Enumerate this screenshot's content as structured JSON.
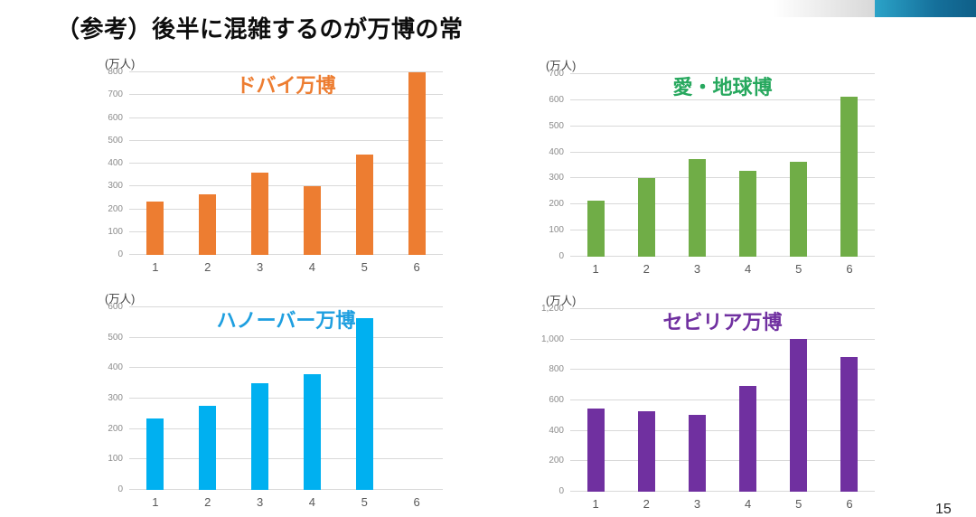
{
  "slide": {
    "title": "（参考）後半に混雑するのが万博の常",
    "page_number": "15",
    "accent": {
      "gray_strip_from": "#FFFFFF",
      "gray_strip_to": "#D8D8D8",
      "teal_bar_from": "#2BA3C8",
      "teal_bar_to": "#0F5F88"
    }
  },
  "chart_data": [
    {
      "type": "bar",
      "title": "ドバイ万博",
      "title_color": "#ED7D31",
      "color": "#ED7D31",
      "unit_label": "(万人)",
      "xlabel": "",
      "ylabel": "(万人)",
      "categories": [
        "1",
        "2",
        "3",
        "4",
        "5",
        "6"
      ],
      "values": [
        235,
        265,
        360,
        300,
        440,
        800
      ],
      "ylim": [
        0,
        800
      ],
      "ytick_step": 100,
      "yticks": [
        "800",
        "700",
        "600",
        "500",
        "400",
        "300",
        "200",
        "100",
        "0"
      ],
      "grid": true,
      "legend": false
    },
    {
      "type": "bar",
      "title": "愛・地球博",
      "title_color": "#27A85E",
      "color": "#70AD47",
      "unit_label": "(万人)",
      "xlabel": "",
      "ylabel": "(万人)",
      "categories": [
        "1",
        "2",
        "3",
        "4",
        "5",
        "6"
      ],
      "values": [
        215,
        300,
        375,
        330,
        365,
        615
      ],
      "ylim": [
        0,
        700
      ],
      "ytick_step": 100,
      "yticks": [
        "700",
        "600",
        "500",
        "400",
        "300",
        "200",
        "100",
        "0"
      ],
      "grid": true,
      "legend": false
    },
    {
      "type": "bar",
      "title": "ハノーバー万博",
      "title_color": "#1E9FE0",
      "color": "#00B0F0",
      "unit_label": "(万人)",
      "xlabel": "",
      "ylabel": "(万人)",
      "categories": [
        "1",
        "2",
        "3",
        "4",
        "5",
        "6"
      ],
      "values": [
        235,
        275,
        350,
        380,
        565,
        0
      ],
      "ylim": [
        0,
        600
      ],
      "ytick_step": 100,
      "yticks": [
        "600",
        "500",
        "400",
        "300",
        "200",
        "100",
        "0"
      ],
      "grid": true,
      "legend": false
    },
    {
      "type": "bar",
      "title": "セビリア万博",
      "title_color": "#7030A0",
      "color": "#7030A0",
      "unit_label": "(万人)",
      "xlabel": "",
      "ylabel": "(万人)",
      "categories": [
        "1",
        "2",
        "3",
        "4",
        "5",
        "6"
      ],
      "values": [
        545,
        530,
        505,
        695,
        1005,
        885
      ],
      "ylim": [
        0,
        1200
      ],
      "ytick_step": 200,
      "yticks": [
        "1,200",
        "1,000",
        "800",
        "600",
        "400",
        "200",
        "0"
      ],
      "grid": true,
      "legend": false
    }
  ]
}
